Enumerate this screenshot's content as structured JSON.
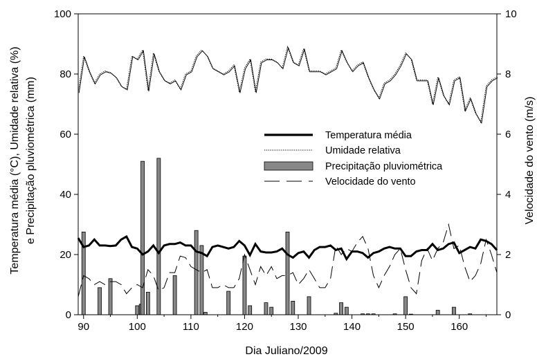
{
  "chart_data": {
    "type": "bar",
    "xlabel": "Dia Juliano/2009",
    "ylabel_left": [
      "Temperatura média (°C), Umidade relativa (%)",
      "e Precipitação pluviométrica (mm)"
    ],
    "ylabel_right": "Velocidade do vento (m/s)",
    "xlim": [
      89,
      167
    ],
    "ylim_left": [
      0,
      100
    ],
    "ylim_right": [
      0,
      10
    ],
    "xticks": [
      "90",
      "100",
      "110",
      "120",
      "130",
      "140",
      "150",
      "160"
    ],
    "yticks_left": [
      "0",
      "20",
      "40",
      "60",
      "80",
      "100"
    ],
    "yticks_right": [
      "0",
      "2",
      "4",
      "6",
      "8",
      "10"
    ],
    "legend_position": "center-right",
    "series": [
      {
        "name": "Temperatura média",
        "type": "line",
        "style": "thick-solid",
        "axis": "left",
        "x": [
          89,
          90,
          91,
          92,
          93,
          94,
          95,
          96,
          97,
          98,
          99,
          100,
          101,
          102,
          103,
          104,
          105,
          106,
          107,
          108,
          109,
          110,
          111,
          112,
          113,
          114,
          115,
          116,
          117,
          118,
          119,
          120,
          121,
          122,
          123,
          124,
          125,
          126,
          127,
          128,
          129,
          130,
          131,
          132,
          133,
          134,
          135,
          136,
          137,
          138,
          139,
          140,
          141,
          142,
          143,
          144,
          145,
          146,
          147,
          148,
          149,
          150,
          151,
          152,
          153,
          154,
          155,
          156,
          157,
          158,
          159,
          160,
          161,
          162,
          163,
          164,
          165,
          166,
          167
        ],
        "values": [
          25.5,
          22.5,
          23,
          25,
          23,
          23,
          22.8,
          23,
          25,
          26,
          22.5,
          22,
          20,
          21,
          23,
          20.5,
          23,
          23.5,
          23.5,
          24,
          23,
          23,
          21,
          20.5,
          19.5,
          22.5,
          23,
          22.5,
          22,
          22.5,
          24.5,
          23,
          19.8,
          23.5,
          21,
          20.7,
          20.7,
          21,
          22,
          20,
          19,
          20.5,
          21,
          19,
          21.5,
          22.5,
          22.5,
          23,
          21.5,
          22,
          18.5,
          21,
          21,
          20.5,
          19,
          20.5,
          21,
          22,
          22.5,
          22,
          22,
          19.5,
          19.5,
          21,
          21.5,
          21.5,
          23.5,
          21.5,
          22,
          23.5,
          24,
          20.5,
          21.5,
          22.5,
          22,
          25,
          24.5,
          23.5,
          21.5
        ]
      },
      {
        "name": "Umidade relativa",
        "type": "line",
        "style": "thin-dotted",
        "axis": "left",
        "x": [
          89,
          90,
          91,
          92,
          93,
          94,
          95,
          96,
          97,
          98,
          99,
          100,
          101,
          102,
          103,
          104,
          105,
          106,
          107,
          108,
          109,
          110,
          111,
          112,
          113,
          114,
          115,
          116,
          117,
          118,
          119,
          120,
          121,
          122,
          123,
          124,
          125,
          126,
          127,
          128,
          129,
          130,
          131,
          132,
          133,
          134,
          135,
          136,
          137,
          138,
          139,
          140,
          141,
          142,
          143,
          144,
          145,
          146,
          147,
          148,
          149,
          150,
          151,
          152,
          153,
          154,
          155,
          156,
          157,
          158,
          159,
          160,
          161,
          162,
          163,
          164,
          165,
          166,
          167
        ],
        "values": [
          74,
          86,
          81,
          77,
          80,
          81,
          80.5,
          79,
          76,
          75,
          86,
          85,
          88,
          74.5,
          87,
          81,
          78,
          77,
          78,
          75,
          80,
          81,
          86,
          88,
          86,
          82,
          81,
          80,
          81,
          83,
          74,
          82,
          85,
          74,
          84,
          85,
          85,
          84,
          82,
          89,
          84,
          83,
          88.5,
          81,
          81,
          81,
          80,
          81,
          82,
          88,
          84,
          81,
          83,
          84,
          79,
          75,
          72,
          77,
          78,
          80,
          83,
          87,
          85,
          78,
          78,
          78,
          70,
          79,
          73,
          70,
          78,
          79,
          68,
          72,
          67,
          64,
          76,
          78,
          79
        ]
      },
      {
        "name": "Precipitação pluviométrica",
        "type": "bar",
        "axis": "left",
        "x": [
          90,
          93,
          95,
          100,
          100.7,
          101,
          102,
          104,
          107,
          111,
          112,
          112.7,
          117,
          120,
          121,
          124,
          125,
          128,
          129,
          132,
          137,
          138,
          139,
          142,
          143,
          144,
          148,
          150,
          151,
          156,
          159,
          162
        ],
        "values": [
          27.5,
          9,
          12,
          3,
          3.5,
          51,
          7.5,
          52,
          13,
          28,
          23,
          0.8,
          7.8,
          19.5,
          3,
          4,
          2.5,
          27.5,
          4.5,
          6,
          0.5,
          4,
          2.5,
          0.3,
          0.3,
          0.3,
          0.3,
          6,
          0.2,
          1.5,
          2.5,
          0.3
        ]
      },
      {
        "name": "Velocidade do vento",
        "type": "line",
        "style": "long-dash",
        "axis": "right",
        "x": [
          89,
          90,
          91,
          92,
          93,
          94,
          95,
          96,
          97,
          98,
          99,
          100,
          101,
          102,
          103,
          104,
          105,
          106,
          107,
          108,
          109,
          110,
          111,
          112,
          113,
          114,
          115,
          116,
          117,
          118,
          119,
          120,
          121,
          122,
          123,
          124,
          125,
          126,
          127,
          128,
          129,
          130,
          131,
          132,
          133,
          134,
          135,
          136,
          137,
          138,
          139,
          140,
          141,
          142,
          143,
          144,
          145,
          146,
          147,
          148,
          149,
          150,
          151,
          152,
          153,
          154,
          155,
          156,
          157,
          158,
          159,
          160,
          161,
          162,
          163,
          164,
          165,
          166,
          167
        ],
        "values": [
          0.6,
          1.3,
          1.2,
          1.0,
          1.1,
          1.0,
          1.1,
          1.1,
          1.0,
          0.7,
          0.9,
          1.0,
          0.9,
          1.5,
          1.3,
          0.8,
          0.9,
          1.4,
          1.4,
          1.95,
          1.9,
          1.6,
          1.5,
          1.4,
          1.5,
          0.9,
          0.9,
          1.0,
          0.9,
          0.9,
          1.2,
          2.0,
          1.5,
          1.0,
          1.6,
          1.3,
          1.6,
          1.2,
          1.3,
          1.3,
          1.4,
          1.0,
          1.2,
          1.5,
          1.2,
          0.9,
          0.9,
          1.2,
          2.3,
          2.0,
          2.2,
          2.1,
          2.4,
          2.6,
          2.2,
          1.3,
          0.9,
          1.3,
          1.6,
          2.0,
          2.2,
          1.5,
          0.9,
          0.7,
          1.8,
          2.2,
          1.8,
          2.2,
          2.4,
          3.0,
          2.2,
          2.3,
          1.6,
          1.1,
          1.3,
          1.7,
          2.5,
          2.0,
          1.4
        ]
      }
    ]
  }
}
